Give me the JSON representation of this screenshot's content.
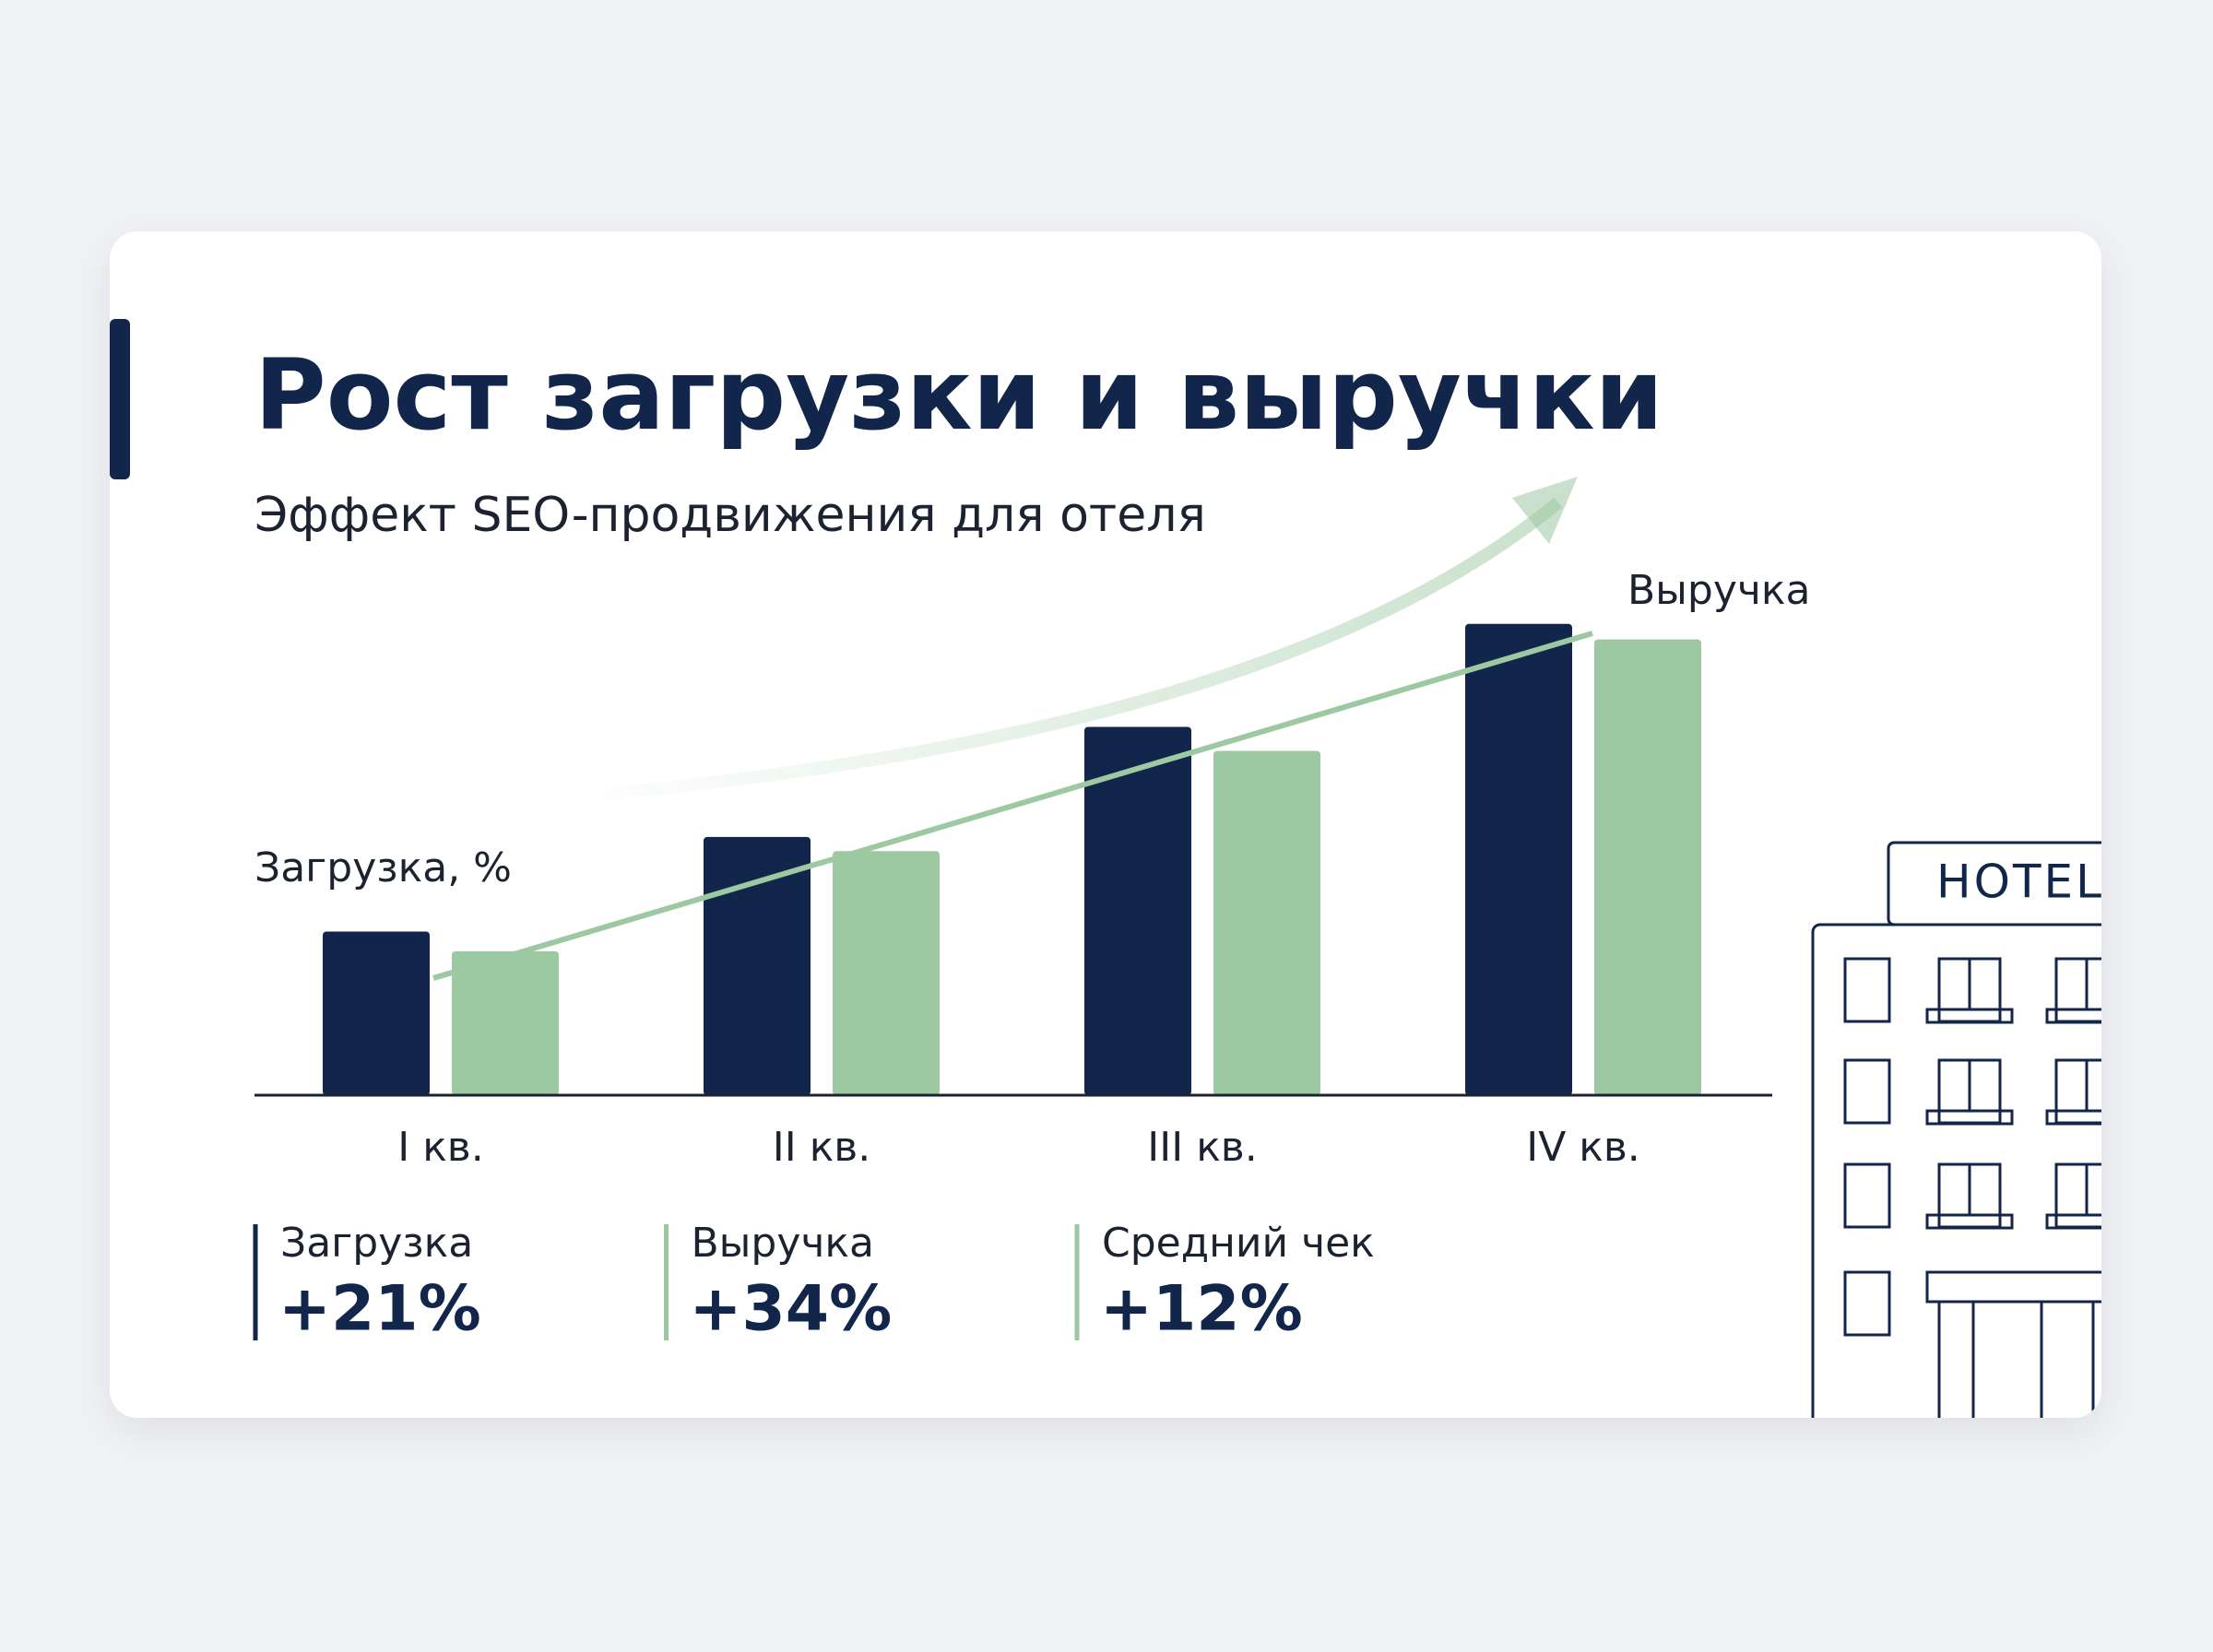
{
  "chart_data": {
    "type": "bar",
    "title": "Рост загрузки и выручки",
    "subtitle": "Эффект SEO-продвижения для отеля",
    "categories": [
      "I кв.",
      "II кв.",
      "III кв.",
      "IV кв."
    ],
    "series": [
      {
        "name": "Загрузка, %",
        "color": "#11264a",
        "values": [
          116,
          183,
          261,
          334
        ]
      },
      {
        "name": "Выручка",
        "color": "#9dc9a2",
        "values": [
          102,
          173,
          244,
          323
        ]
      }
    ]
  },
  "stats": [
    {
      "label": "Загрузка",
      "value": "+21%",
      "color": "#11264a"
    },
    {
      "label": "Выручка",
      "value": "+34%",
      "color": "#9dc9a2"
    },
    {
      "label": "Средний чек",
      "value": "+12%",
      "color": "#9dc9a2"
    }
  ],
  "illustration_label": "HOTEL"
}
